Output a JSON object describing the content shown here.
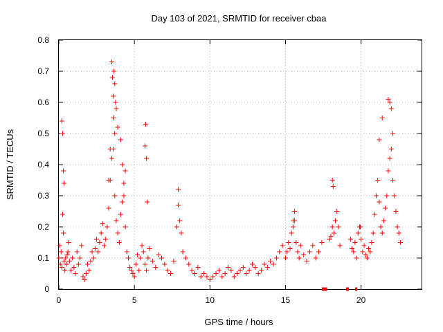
{
  "chart_data": {
    "type": "scatter",
    "title": "Day 103 of 2021, SRMTID for receiver cbaa",
    "xlabel": "GPS time / hours",
    "ylabel": "SRMTID / TECUs",
    "xlim": [
      0,
      24
    ],
    "ylim": [
      0,
      0.8
    ],
    "xticks": [
      0,
      5,
      10,
      15,
      20
    ],
    "yticks": [
      0,
      0.1,
      0.2,
      0.3,
      0.4,
      0.5,
      0.6,
      0.7,
      0.8
    ],
    "xtick_labels": [
      "0",
      "5",
      "10",
      "15",
      "20"
    ],
    "ytick_labels": [
      "0",
      "0.1",
      "0.2",
      "0.3",
      "0.4",
      "0.5",
      "0.6",
      "0.7",
      "0.8"
    ],
    "grid": true,
    "marker": "+",
    "color": "#ff0000",
    "series": [
      {
        "name": "SRMTID",
        "x": [
          0.0,
          0.05,
          0.1,
          0.15,
          0.2,
          0.25,
          0.3,
          0.35,
          0.4,
          0.45,
          0.5,
          0.55,
          0.6,
          0.65,
          0.7,
          0.8,
          0.9,
          1.0,
          1.1,
          1.2,
          1.3,
          1.4,
          1.5,
          1.6,
          1.7,
          1.8,
          1.9,
          2.0,
          2.1,
          2.2,
          2.3,
          2.4,
          2.5,
          2.6,
          2.7,
          2.8,
          2.9,
          3.0,
          3.1,
          3.2,
          3.3,
          3.4,
          3.5,
          3.6,
          3.7,
          3.8,
          3.9,
          4.0,
          4.1,
          4.2,
          4.3,
          4.4,
          4.5,
          4.6,
          4.7,
          4.8,
          4.9,
          5.0,
          5.1,
          5.2,
          5.3,
          5.4,
          5.5,
          5.6,
          5.7,
          5.8,
          5.9,
          6.0,
          6.2,
          6.4,
          6.6,
          6.8,
          7.0,
          7.2,
          7.4,
          7.6,
          7.8,
          7.9,
          8.0,
          8.1,
          8.2,
          8.4,
          8.6,
          8.8,
          9.0,
          9.2,
          9.4,
          9.6,
          9.8,
          10.0,
          10.2,
          10.4,
          10.6,
          10.8,
          11.0,
          11.2,
          11.4,
          11.6,
          11.8,
          12.0,
          12.2,
          12.4,
          12.6,
          12.8,
          13.0,
          13.2,
          13.4,
          13.6,
          13.8,
          14.0,
          14.2,
          14.4,
          14.6,
          14.8,
          15.0,
          15.1,
          15.2,
          15.3,
          15.4,
          15.5,
          15.6,
          15.7,
          15.8,
          15.9,
          16.0,
          16.2,
          16.4,
          16.6,
          16.8,
          17.0,
          17.2,
          17.4,
          17.9,
          18.0,
          18.1,
          18.2,
          18.3,
          18.4,
          18.5,
          18.6,
          19.3,
          19.4,
          19.5,
          19.6,
          19.7,
          19.8,
          19.9,
          20.0,
          20.1,
          20.2,
          20.3,
          20.4,
          20.5,
          20.6,
          20.7,
          20.8,
          20.9,
          21.0,
          21.1,
          21.2,
          21.3,
          21.4,
          21.5,
          21.6,
          21.7,
          21.8,
          21.9,
          22.0,
          22.1,
          22.2,
          22.3,
          22.4,
          22.5,
          22.6,
          0.2,
          0.25,
          0.3,
          0.35,
          3.5,
          3.55,
          3.6,
          3.65,
          3.7,
          3.75,
          3.8,
          3.9,
          4.1,
          4.2,
          5.7,
          5.75,
          5.8,
          5.85,
          7.9,
          18.1,
          18.15,
          19.95,
          21.2,
          21.4,
          21.8,
          21.9,
          22.0,
          22.1,
          3.3,
          3.4,
          3.6,
          3.7,
          4.3,
          4.4,
          15.5,
          15.6
        ],
        "y": [
          0.1,
          0.14,
          0.08,
          0.12,
          0.07,
          0.24,
          0.18,
          0.09,
          0.06,
          0.1,
          0.08,
          0.11,
          0.12,
          0.15,
          0.09,
          0.06,
          0.1,
          0.07,
          0.05,
          0.12,
          0.08,
          0.1,
          0.14,
          0.04,
          0.03,
          0.05,
          0.08,
          0.06,
          0.09,
          0.12,
          0.1,
          0.13,
          0.16,
          0.12,
          0.15,
          0.18,
          0.21,
          0.14,
          0.16,
          0.2,
          0.26,
          0.35,
          0.42,
          0.55,
          0.3,
          0.22,
          0.18,
          0.15,
          0.24,
          0.28,
          0.34,
          0.2,
          0.12,
          0.1,
          0.07,
          0.06,
          0.05,
          0.04,
          0.08,
          0.11,
          0.06,
          0.1,
          0.14,
          0.12,
          0.08,
          0.06,
          0.1,
          0.13,
          0.09,
          0.07,
          0.11,
          0.1,
          0.08,
          0.06,
          0.05,
          0.09,
          0.2,
          0.27,
          0.22,
          0.18,
          0.12,
          0.1,
          0.08,
          0.06,
          0.05,
          0.07,
          0.04,
          0.05,
          0.04,
          0.03,
          0.04,
          0.05,
          0.06,
          0.04,
          0.05,
          0.07,
          0.06,
          0.04,
          0.05,
          0.06,
          0.07,
          0.05,
          0.06,
          0.08,
          0.07,
          0.05,
          0.06,
          0.08,
          0.07,
          0.09,
          0.08,
          0.1,
          0.12,
          0.14,
          0.1,
          0.12,
          0.15,
          0.13,
          0.18,
          0.2,
          0.22,
          0.15,
          0.12,
          0.1,
          0.14,
          0.11,
          0.09,
          0.12,
          0.14,
          0.1,
          0.12,
          0.15,
          0.16,
          0.17,
          0.2,
          0.18,
          0.22,
          0.25,
          0.2,
          0.14,
          0.16,
          0.13,
          0.12,
          0.15,
          0.1,
          0.18,
          0.2,
          0.16,
          0.12,
          0.14,
          0.11,
          0.1,
          0.13,
          0.12,
          0.15,
          0.18,
          0.24,
          0.3,
          0.35,
          0.28,
          0.2,
          0.18,
          0.22,
          0.26,
          0.3,
          0.38,
          0.42,
          0.45,
          0.35,
          0.3,
          0.25,
          0.2,
          0.18,
          0.15,
          0.54,
          0.5,
          0.38,
          0.34,
          0.73,
          0.68,
          0.62,
          0.7,
          0.66,
          0.6,
          0.58,
          0.52,
          0.48,
          0.4,
          0.46,
          0.53,
          0.42,
          0.28,
          0.32,
          0.35,
          0.33,
          0.2,
          0.48,
          0.55,
          0.61,
          0.6,
          0.58,
          0.5,
          0.35,
          0.45,
          0.45,
          0.5,
          0.3,
          0.38,
          0.22,
          0.25
        ]
      }
    ],
    "data_gaps": [
      {
        "start": 17.4,
        "end": 17.75
      },
      {
        "start": 19.0,
        "end": 19.2
      },
      {
        "start": 19.6,
        "end": 19.75
      }
    ]
  }
}
